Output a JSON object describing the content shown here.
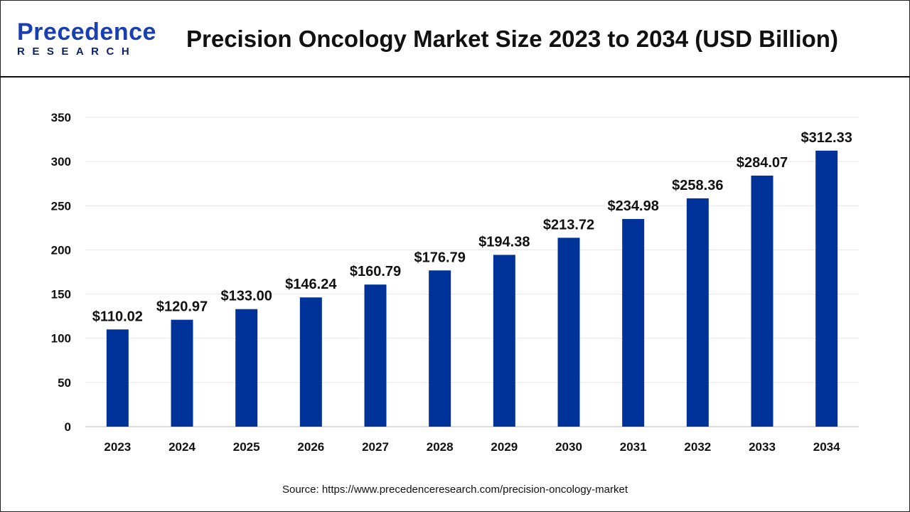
{
  "header": {
    "logo_line1": "Precedence",
    "logo_line2": "RESEARCH",
    "title": "Precision Oncology Market Size 2023 to 2034 (USD Billion)"
  },
  "source": "Source: https://www.precedenceresearch.com/precision-oncology-market",
  "chart_data": {
    "type": "bar",
    "title": "Precision Oncology Market Size 2023 to 2034 (USD Billion)",
    "categories": [
      "2023",
      "2024",
      "2025",
      "2026",
      "2027",
      "2028",
      "2029",
      "2030",
      "2031",
      "2032",
      "2033",
      "2034"
    ],
    "values": [
      110.02,
      120.97,
      133.0,
      146.24,
      160.79,
      176.79,
      194.38,
      213.72,
      234.98,
      258.36,
      284.07,
      312.33
    ],
    "data_labels": [
      "$110.02",
      "$120.97",
      "$133.00",
      "$146.24",
      "$160.79",
      "$176.79",
      "$194.38",
      "$213.72",
      "$234.98",
      "$258.36",
      "$284.07",
      "$312.33"
    ],
    "yticks": [
      "0",
      "50",
      "100",
      "150",
      "200",
      "250",
      "300",
      "350"
    ],
    "ylim": [
      0,
      350
    ],
    "grid": true,
    "bar_color": "#00339a"
  }
}
